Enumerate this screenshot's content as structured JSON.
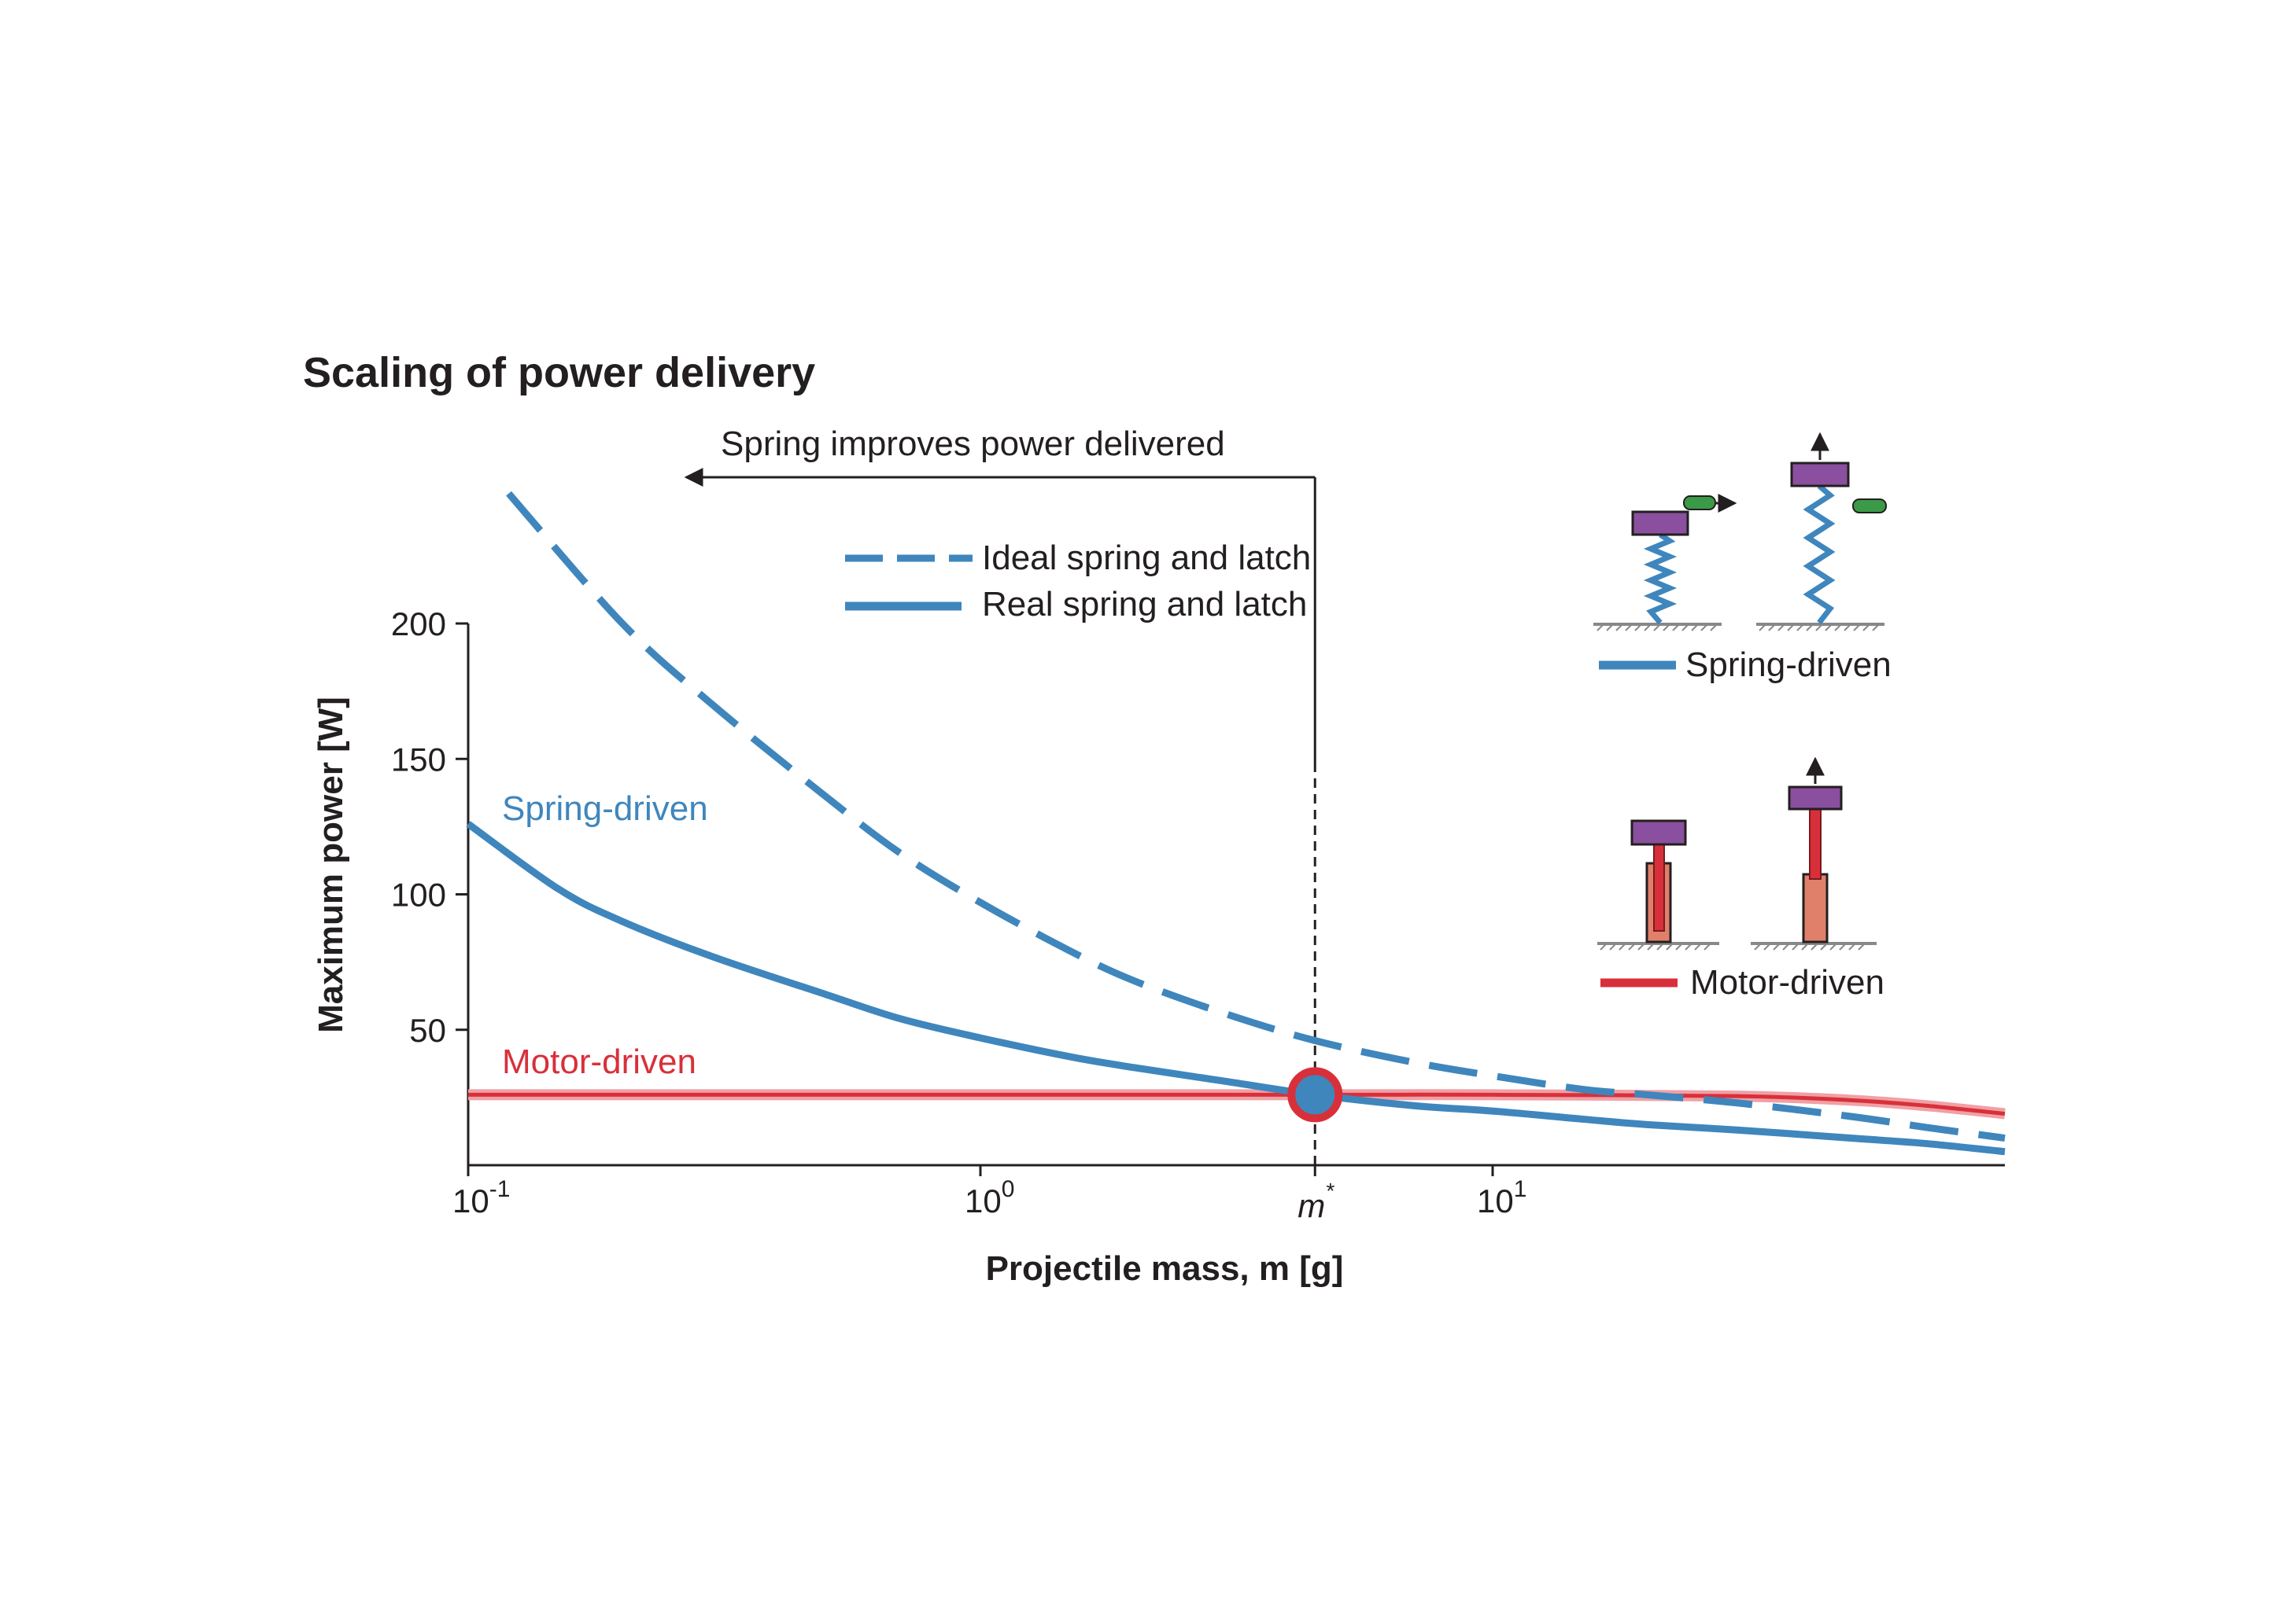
{
  "figure": {
    "title": "Scaling of power delivery",
    "annotation": "Spring improves power delivered",
    "legend": {
      "ideal": "Ideal spring and latch",
      "real": "Real spring and latch"
    },
    "insets": {
      "spring": "Spring-driven",
      "motor": "Motor-driven"
    },
    "curve_labels": {
      "spring": "Spring-driven",
      "motor": "Motor-driven"
    },
    "crossover_label": "m*"
  },
  "colors": {
    "spring": "#3f86bd",
    "motor": "#d8303a",
    "mass": "#8a4f9e",
    "latch": "#3a9a48",
    "motor_body": "#e0806a"
  },
  "chart_data": {
    "type": "line",
    "xlabel": "Projectile mass, m [g]",
    "ylabel": "Maximum power  [W]",
    "xscale": "log",
    "xlim": [
      0.1,
      100
    ],
    "ylim": [
      0,
      200
    ],
    "yticks": [
      50,
      100,
      150,
      200
    ],
    "xticks": [
      {
        "value": 0.1,
        "base": "10",
        "exp": "-1"
      },
      {
        "value": 1,
        "base": "10",
        "exp": "0"
      },
      {
        "value": 10,
        "base": "10",
        "exp": "1"
      }
    ],
    "crossover": {
      "x": 4.5,
      "y": 26
    },
    "series": [
      {
        "name": "Ideal spring and latch",
        "style": "dashed",
        "color": "#3f86bd",
        "x": [
          0.12,
          0.2,
          0.3,
          0.5,
          0.7,
          1.0,
          1.5,
          2,
          3,
          4.5,
          7,
          10,
          15,
          20,
          30,
          50,
          70,
          100
        ],
        "y": [
          248,
          200,
          170,
          136,
          115,
          97,
          79,
          68,
          56,
          46,
          38,
          33,
          28,
          26,
          23,
          18,
          14,
          10
        ]
      },
      {
        "name": "Spring-driven",
        "style": "solid",
        "color": "#3f86bd",
        "x": [
          0.1,
          0.15,
          0.2,
          0.3,
          0.5,
          0.7,
          1.0,
          1.5,
          2,
          3,
          4.5,
          7,
          10,
          15,
          20,
          30,
          50,
          70,
          100
        ],
        "y": [
          126,
          102,
          90,
          77,
          63,
          54,
          47,
          40,
          36,
          31,
          26,
          22,
          20,
          17,
          15,
          13,
          10,
          8,
          5
        ]
      },
      {
        "name": "Motor-driven",
        "style": "solid",
        "color": "#d8303a",
        "x": [
          0.1,
          1,
          4.5,
          10,
          30,
          50,
          70,
          100
        ],
        "y": [
          26,
          26,
          26,
          26,
          25.5,
          24,
          22,
          19
        ]
      }
    ]
  }
}
